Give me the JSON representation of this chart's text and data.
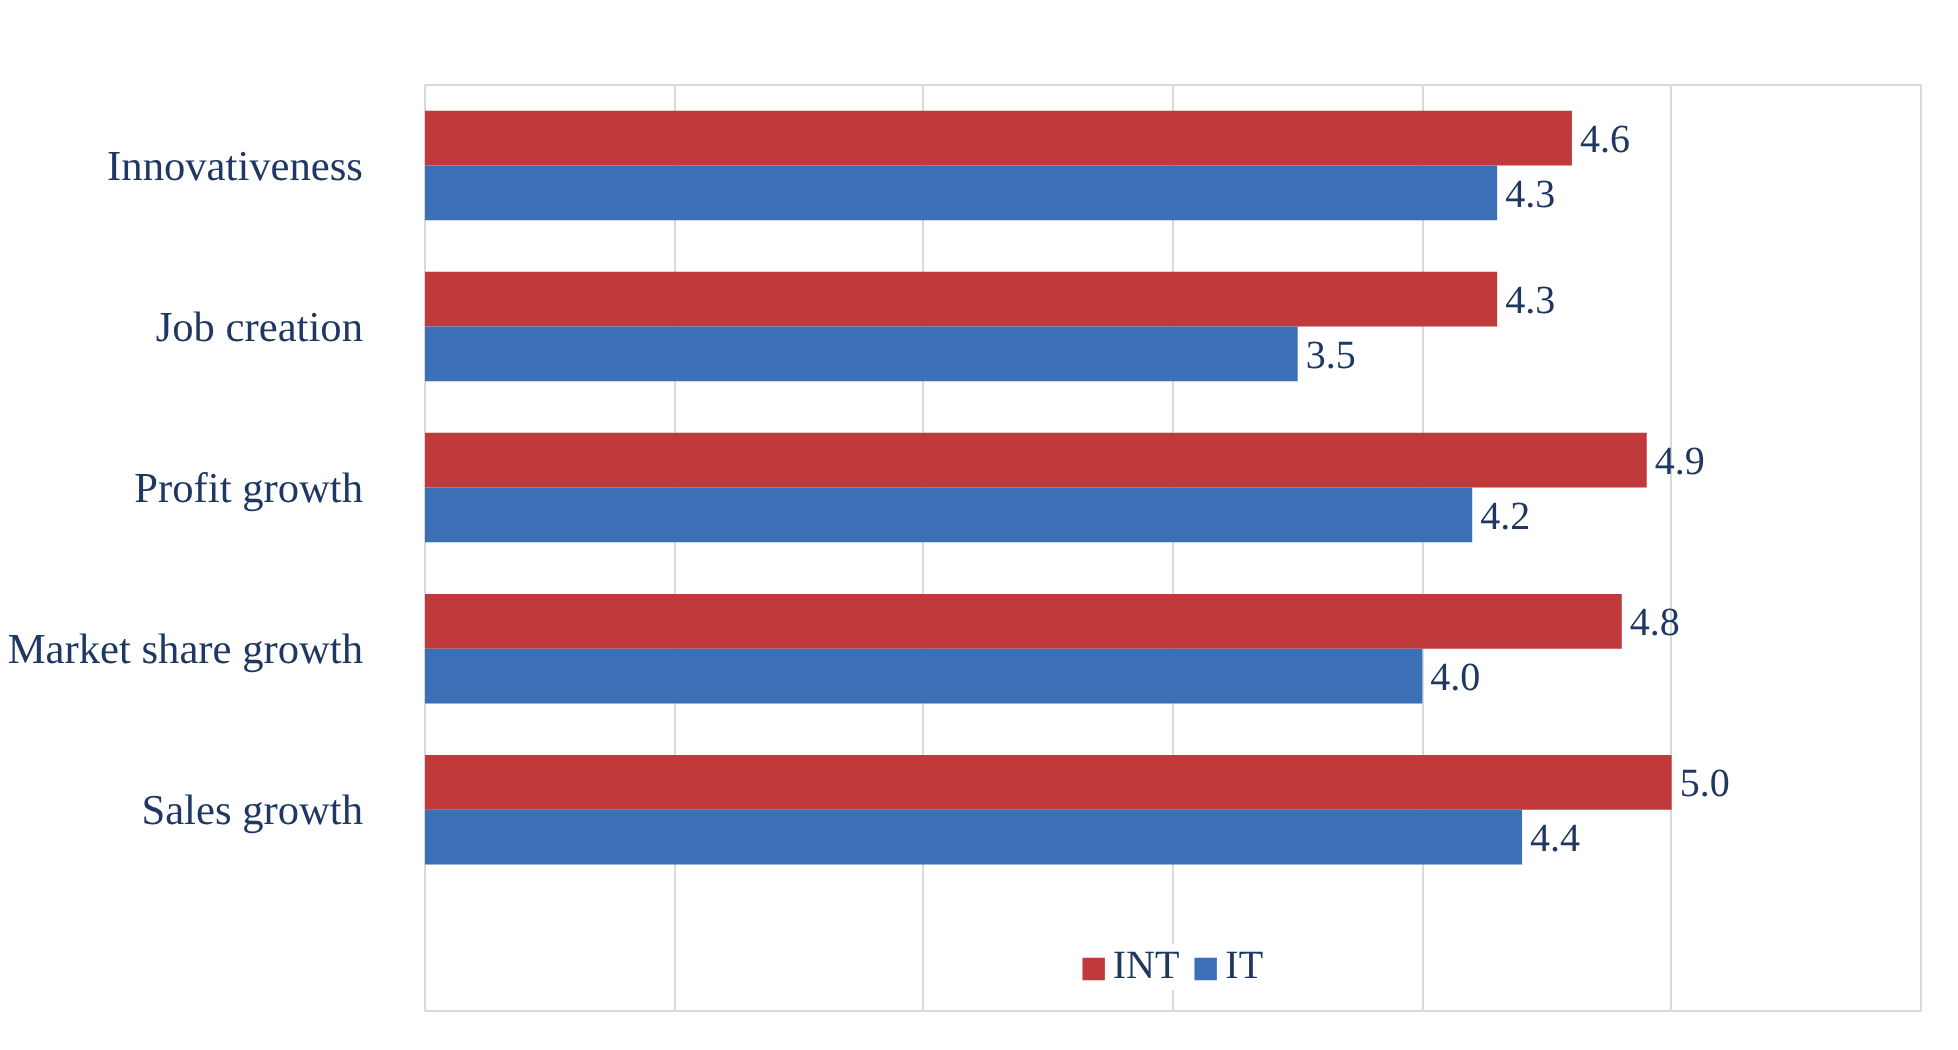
{
  "chart_data": {
    "type": "bar",
    "orientation": "horizontal",
    "categories": [
      "Innovativeness",
      "Job creation",
      "Profit growth",
      "Market share growth",
      "Sales growth"
    ],
    "series": [
      {
        "name": "INT",
        "color": "#c0393b",
        "values": [
          4.6,
          4.3,
          4.9,
          4.8,
          5.0
        ],
        "value_labels": [
          "4.6",
          "4.3",
          "4.9",
          "4.8",
          "5.0"
        ]
      },
      {
        "name": "IT",
        "color": "#3b6fb6",
        "values": [
          4.3,
          3.5,
          4.2,
          4.0,
          4.4
        ],
        "value_labels": [
          "4.3",
          "3.5",
          "4.2",
          "4.0",
          "4.4"
        ]
      }
    ],
    "xlim": [
      0,
      6
    ],
    "xticks": [
      {
        "value": 0,
        "label": null
      },
      {
        "value": 1,
        "label": null
      },
      {
        "value": 2,
        "label": null
      },
      {
        "value": 3,
        "label": null
      },
      {
        "value": 4,
        "label": null
      },
      {
        "value": 5,
        "label": null
      },
      {
        "value": 6,
        "label": null
      }
    ],
    "grid": "x",
    "legend": "bottom",
    "tick_labels": "y"
  }
}
